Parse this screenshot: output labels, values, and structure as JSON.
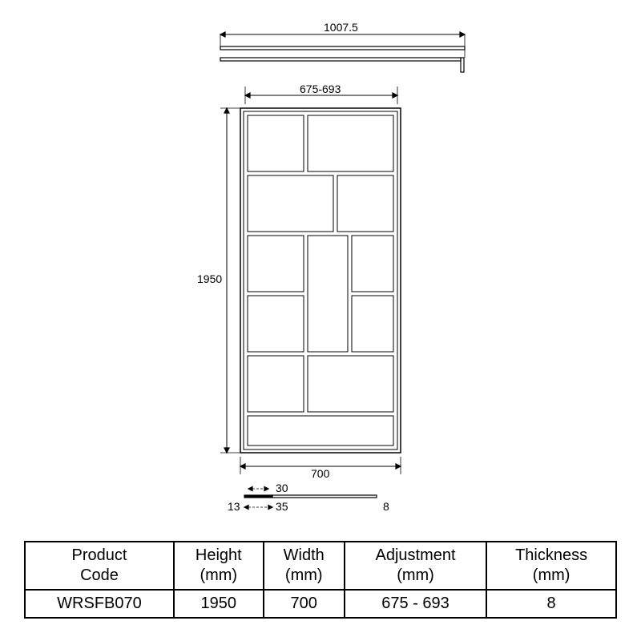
{
  "dimensions": {
    "top_bar_width": "1007.5",
    "panel_adjustment": "675-693",
    "panel_height": "1950",
    "panel_width": "700",
    "profile_depth_inner": "30",
    "profile_depth_outer": "35",
    "profile_left": "13",
    "profile_right": "8"
  },
  "table": {
    "headers": {
      "code": "Product Code",
      "height": "Height (mm)",
      "width": "Width (mm)",
      "adjustment": "Adjustment (mm)",
      "thickness": "Thickness (mm)"
    },
    "row": {
      "code": "WRSFB070",
      "height": "1950",
      "width": "700",
      "adjustment": "675 - 693",
      "thickness": "8"
    }
  },
  "style": {
    "stroke": "#000000",
    "stroke_thin": 1,
    "stroke_med": 1.2,
    "background": "#ffffff"
  }
}
